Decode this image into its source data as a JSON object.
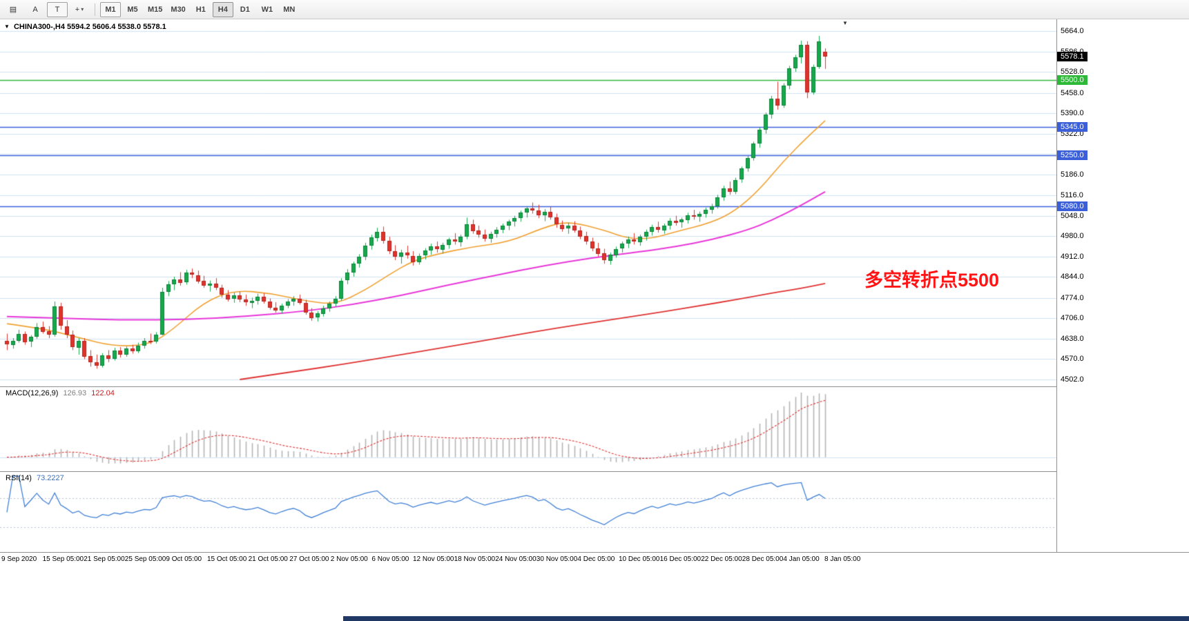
{
  "toolbar": {
    "icons": [
      {
        "id": "chart-grid-icon",
        "glyph": "▤"
      },
      {
        "id": "cursor-a-icon",
        "glyph": "A"
      },
      {
        "id": "text-tool-icon",
        "glyph": "T"
      },
      {
        "id": "crosshair-icon",
        "glyph": "+"
      },
      {
        "id": "chevron-down-icon",
        "glyph": "▾"
      }
    ],
    "timeframes": [
      {
        "label": "M1"
      },
      {
        "label": "M5"
      },
      {
        "label": "M15"
      },
      {
        "label": "M30"
      },
      {
        "label": "H1"
      },
      {
        "label": "H4"
      },
      {
        "label": "D1"
      },
      {
        "label": "W1"
      },
      {
        "label": "MN"
      }
    ]
  },
  "header": {
    "dropdown_glyph": "▼",
    "symbol_period": "CHINA300-,H4",
    "ohlc": "5594.2 5606.4 5538.0 5578.1",
    "shift_marker": "▼"
  },
  "annotation": {
    "text": "多空转折点5500",
    "color": "#ff1515"
  },
  "indicators": {
    "macd": {
      "label": "MACD(12,26,9)",
      "value1": "126.93",
      "value2": "122.04",
      "params": [
        12,
        26,
        9
      ],
      "axis": [
        "135.38",
        "0.00",
        "-49.65"
      ]
    },
    "rsi": {
      "label": "RSI(14)",
      "value": "73.2227",
      "params": [
        14
      ],
      "axis_top": "100",
      "levels": [
        "70",
        "30"
      ]
    }
  },
  "chart_data": {
    "type": "candlestick",
    "symbol": "CHINA300-",
    "timeframe": "H4",
    "current_ohlc": {
      "open": 5594.2,
      "high": 5606.4,
      "low": 5538.0,
      "close": 5578.1
    },
    "y_axis": {
      "range": [
        4502,
        5664
      ],
      "ticks": [
        "5664.0",
        "5596.0",
        "5528.0",
        "5458.0",
        "5390.0",
        "5322.0",
        "5254.0",
        "5186.0",
        "5116.0",
        "5048.0",
        "4980.0",
        "4912.0",
        "4844.0",
        "4774.0",
        "4706.0",
        "4638.0",
        "4570.0",
        "4502.0"
      ]
    },
    "current_price_tag": {
      "label": "5578.1",
      "price": 5578.1,
      "bg": "#000000",
      "text_color": "#ffffff"
    },
    "hlines": [
      {
        "label": "5500.0",
        "price": 5500,
        "color": "#2eb838"
      },
      {
        "label": "5345.0",
        "price": 5345,
        "color": "#3a5fd9"
      },
      {
        "label": "5250.0",
        "price": 5250,
        "color": "#3a5fd9"
      },
      {
        "label": "5080.0",
        "price": 5080,
        "color": "#3a5fd9"
      }
    ],
    "x_tick_labels": [
      "9 Sep 2020",
      "15 Sep 05:00",
      "21 Sep 05:00",
      "25 Sep 05:00",
      "9 Oct 05:00",
      "15 Oct 05:00",
      "21 Oct 05:00",
      "27 Oct 05:00",
      "2 Nov 05:00",
      "6 Nov 05:00",
      "12 Nov 05:00",
      "18 Nov 05:00",
      "24 Nov 05:00",
      "30 Nov 05:00",
      "4 Dec 05:00",
      "10 Dec 05:00",
      "16 Dec 05:00",
      "22 Dec 05:00",
      "28 Dec 05:00",
      "4 Jan 05:00",
      "8 Jan 05:00"
    ],
    "colors": {
      "up": "#16a94c",
      "up_border": "#0c8038",
      "down": "#e0332c",
      "down_border": "#b3241e",
      "grid": "#cfe2f3",
      "macd_hist": "#b4b4b4",
      "macd_signal": "#e03131",
      "rsi": "#3f7fd6",
      "rsi_levels": "#b6bfd4",
      "ma_fast": "#f0a030",
      "ma_mid": "#e836d8",
      "ma_slow": "#e03131"
    },
    "moving_averages": [
      {
        "name": "ma-fast",
        "color": "#f0a030",
        "width": 1.6,
        "points": [
          [
            0,
            4688
          ],
          [
            6,
            4672
          ],
          [
            12,
            4642
          ],
          [
            18,
            4612
          ],
          [
            24,
            4618
          ],
          [
            28,
            4672
          ],
          [
            33,
            4760
          ],
          [
            38,
            4800
          ],
          [
            44,
            4790
          ],
          [
            50,
            4764
          ],
          [
            55,
            4752
          ],
          [
            60,
            4800
          ],
          [
            64,
            4852
          ],
          [
            68,
            4898
          ],
          [
            72,
            4920
          ],
          [
            78,
            4945
          ],
          [
            84,
            4960
          ],
          [
            90,
            5010
          ],
          [
            94,
            5030
          ],
          [
            100,
            5000
          ],
          [
            104,
            4972
          ],
          [
            108,
            4972
          ],
          [
            112,
            4995
          ],
          [
            118,
            5025
          ],
          [
            122,
            5065
          ],
          [
            126,
            5135
          ],
          [
            130,
            5230
          ],
          [
            134,
            5310
          ],
          [
            137,
            5365
          ]
        ]
      },
      {
        "name": "ma-mid",
        "color": "#e836d8",
        "width": 2,
        "points": [
          [
            0,
            4712
          ],
          [
            10,
            4706
          ],
          [
            20,
            4700
          ],
          [
            30,
            4702
          ],
          [
            40,
            4712
          ],
          [
            50,
            4730
          ],
          [
            58,
            4752
          ],
          [
            66,
            4782
          ],
          [
            74,
            4818
          ],
          [
            82,
            4850
          ],
          [
            90,
            4882
          ],
          [
            98,
            4908
          ],
          [
            106,
            4928
          ],
          [
            112,
            4945
          ],
          [
            118,
            4968
          ],
          [
            124,
            5000
          ],
          [
            128,
            5032
          ],
          [
            132,
            5072
          ],
          [
            137,
            5128
          ]
        ]
      },
      {
        "name": "ma-slow",
        "color": "#e03131",
        "width": 1.8,
        "points": [
          [
            39,
            4502
          ],
          [
            48,
            4528
          ],
          [
            56,
            4552
          ],
          [
            64,
            4578
          ],
          [
            72,
            4605
          ],
          [
            80,
            4632
          ],
          [
            88,
            4660
          ],
          [
            96,
            4686
          ],
          [
            104,
            4710
          ],
          [
            110,
            4728
          ],
          [
            116,
            4748
          ],
          [
            122,
            4768
          ],
          [
            128,
            4790
          ],
          [
            133,
            4806
          ],
          [
            137,
            4822
          ]
        ]
      }
    ],
    "candles": [
      [
        4630,
        4655,
        4600,
        4618
      ],
      [
        4618,
        4640,
        4605,
        4632
      ],
      [
        4632,
        4668,
        4625,
        4655
      ],
      [
        4655,
        4662,
        4618,
        4628
      ],
      [
        4628,
        4650,
        4610,
        4645
      ],
      [
        4645,
        4690,
        4638,
        4678
      ],
      [
        4678,
        4695,
        4655,
        4662
      ],
      [
        4662,
        4680,
        4640,
        4650
      ],
      [
        4650,
        4762,
        4645,
        4745
      ],
      [
        4745,
        4758,
        4668,
        4680
      ],
      [
        4680,
        4700,
        4640,
        4652
      ],
      [
        4652,
        4665,
        4600,
        4610
      ],
      [
        4610,
        4640,
        4585,
        4632
      ],
      [
        4632,
        4640,
        4570,
        4580
      ],
      [
        4580,
        4600,
        4545,
        4560
      ],
      [
        4560,
        4585,
        4538,
        4548
      ],
      [
        4548,
        4590,
        4542,
        4582
      ],
      [
        4582,
        4600,
        4560,
        4570
      ],
      [
        4570,
        4608,
        4565,
        4598
      ],
      [
        4598,
        4610,
        4575,
        4585
      ],
      [
        4585,
        4612,
        4578,
        4605
      ],
      [
        4605,
        4618,
        4588,
        4596
      ],
      [
        4596,
        4625,
        4590,
        4615
      ],
      [
        4615,
        4640,
        4605,
        4632
      ],
      [
        4632,
        4655,
        4620,
        4628
      ],
      [
        4628,
        4660,
        4622,
        4652
      ],
      [
        4652,
        4808,
        4650,
        4795
      ],
      [
        4795,
        4830,
        4780,
        4820
      ],
      [
        4820,
        4845,
        4800,
        4836
      ],
      [
        4836,
        4860,
        4815,
        4825
      ],
      [
        4825,
        4868,
        4818,
        4858
      ],
      [
        4858,
        4872,
        4840,
        4850
      ],
      [
        4850,
        4865,
        4822,
        4830
      ],
      [
        4830,
        4848,
        4808,
        4815
      ],
      [
        4815,
        4832,
        4795,
        4822
      ],
      [
        4822,
        4840,
        4800,
        4808
      ],
      [
        4808,
        4818,
        4775,
        4785
      ],
      [
        4785,
        4800,
        4762,
        4770
      ],
      [
        4770,
        4792,
        4758,
        4782
      ],
      [
        4782,
        4795,
        4760,
        4768
      ],
      [
        4768,
        4785,
        4748,
        4758
      ],
      [
        4758,
        4775,
        4740,
        4765
      ],
      [
        4765,
        4788,
        4752,
        4778
      ],
      [
        4778,
        4790,
        4755,
        4762
      ],
      [
        4762,
        4772,
        4735,
        4742
      ],
      [
        4742,
        4760,
        4725,
        4732
      ],
      [
        4732,
        4755,
        4722,
        4748
      ],
      [
        4748,
        4770,
        4740,
        4762
      ],
      [
        4762,
        4780,
        4748,
        4772
      ],
      [
        4772,
        4785,
        4752,
        4758
      ],
      [
        4758,
        4768,
        4718,
        4726
      ],
      [
        4726,
        4740,
        4698,
        4708
      ],
      [
        4708,
        4730,
        4695,
        4722
      ],
      [
        4722,
        4748,
        4712,
        4740
      ],
      [
        4740,
        4762,
        4728,
        4755
      ],
      [
        4755,
        4780,
        4745,
        4772
      ],
      [
        4772,
        4840,
        4765,
        4832
      ],
      [
        4832,
        4870,
        4820,
        4858
      ],
      [
        4858,
        4895,
        4845,
        4888
      ],
      [
        4888,
        4920,
        4875,
        4912
      ],
      [
        4912,
        4958,
        4900,
        4948
      ],
      [
        4948,
        4985,
        4935,
        4975
      ],
      [
        4975,
        5008,
        4962,
        4995
      ],
      [
        4995,
        5012,
        4955,
        4965
      ],
      [
        4965,
        4978,
        4920,
        4930
      ],
      [
        4930,
        4950,
        4900,
        4912
      ],
      [
        4912,
        4935,
        4888,
        4925
      ],
      [
        4925,
        4948,
        4905,
        4915
      ],
      [
        4915,
        4930,
        4882,
        4895
      ],
      [
        4895,
        4922,
        4885,
        4915
      ],
      [
        4915,
        4940,
        4902,
        4932
      ],
      [
        4932,
        4955,
        4918,
        4945
      ],
      [
        4945,
        4962,
        4925,
        4935
      ],
      [
        4935,
        4958,
        4922,
        4950
      ],
      [
        4950,
        4975,
        4938,
        4968
      ],
      [
        4968,
        4990,
        4952,
        4960
      ],
      [
        4960,
        4985,
        4945,
        4978
      ],
      [
        4978,
        5042,
        4970,
        5020
      ],
      [
        5020,
        5035,
        4988,
        4998
      ],
      [
        4998,
        5015,
        4975,
        4985
      ],
      [
        4985,
        5002,
        4962,
        4972
      ],
      [
        4972,
        4995,
        4958,
        4988
      ],
      [
        4988,
        5010,
        4975,
        5002
      ],
      [
        5002,
        5022,
        4990,
        5015
      ],
      [
        5015,
        5035,
        5000,
        5028
      ],
      [
        5028,
        5048,
        5012,
        5040
      ],
      [
        5040,
        5065,
        5028,
        5058
      ],
      [
        5058,
        5080,
        5042,
        5072
      ],
      [
        5072,
        5092,
        5055,
        5065
      ],
      [
        5065,
        5085,
        5040,
        5048
      ],
      [
        5048,
        5070,
        5030,
        5060
      ],
      [
        5060,
        5078,
        5035,
        5042
      ],
      [
        5042,
        5055,
        5008,
        5018
      ],
      [
        5018,
        5032,
        4995,
        5005
      ],
      [
        5005,
        5025,
        4988,
        5015
      ],
      [
        5015,
        5030,
        4992,
        5000
      ],
      [
        5000,
        5012,
        4970,
        4980
      ],
      [
        4980,
        4995,
        4952,
        4962
      ],
      [
        4962,
        4975,
        4930,
        4940
      ],
      [
        4940,
        4958,
        4912,
        4922
      ],
      [
        4922,
        4938,
        4888,
        4898
      ],
      [
        4898,
        4925,
        4885,
        4918
      ],
      [
        4918,
        4945,
        4908,
        4938
      ],
      [
        4938,
        4962,
        4925,
        4955
      ],
      [
        4955,
        4978,
        4940,
        4968
      ],
      [
        4968,
        4990,
        4952,
        4960
      ],
      [
        4960,
        4985,
        4948,
        4978
      ],
      [
        4978,
        5002,
        4965,
        4995
      ],
      [
        4995,
        5018,
        4982,
        5010
      ],
      [
        5010,
        5028,
        4992,
        5000
      ],
      [
        5000,
        5022,
        4988,
        5015
      ],
      [
        5015,
        5040,
        5002,
        5032
      ],
      [
        5032,
        5048,
        5015,
        5025
      ],
      [
        5025,
        5042,
        5008,
        5035
      ],
      [
        5035,
        5058,
        5022,
        5050
      ],
      [
        5050,
        5068,
        5035,
        5045
      ],
      [
        5045,
        5062,
        5028,
        5055
      ],
      [
        5055,
        5075,
        5042,
        5068
      ],
      [
        5068,
        5088,
        5055,
        5080
      ],
      [
        5080,
        5118,
        5072,
        5110
      ],
      [
        5110,
        5148,
        5098,
        5140
      ],
      [
        5140,
        5162,
        5118,
        5128
      ],
      [
        5128,
        5175,
        5120,
        5168
      ],
      [
        5168,
        5212,
        5158,
        5205
      ],
      [
        5205,
        5248,
        5195,
        5240
      ],
      [
        5240,
        5295,
        5232,
        5288
      ],
      [
        5288,
        5342,
        5275,
        5335
      ],
      [
        5335,
        5392,
        5322,
        5385
      ],
      [
        5385,
        5448,
        5372,
        5438
      ],
      [
        5438,
        5495,
        5402,
        5415
      ],
      [
        5415,
        5490,
        5408,
        5482
      ],
      [
        5482,
        5548,
        5470,
        5540
      ],
      [
        5540,
        5585,
        5528,
        5576
      ],
      [
        5576,
        5632,
        5556,
        5618
      ],
      [
        5618,
        5630,
        5440,
        5460
      ],
      [
        5460,
        5552,
        5452,
        5545
      ],
      [
        5545,
        5648,
        5538,
        5630
      ],
      [
        5594.2,
        5606.4,
        5538.0,
        5578.1
      ]
    ]
  }
}
